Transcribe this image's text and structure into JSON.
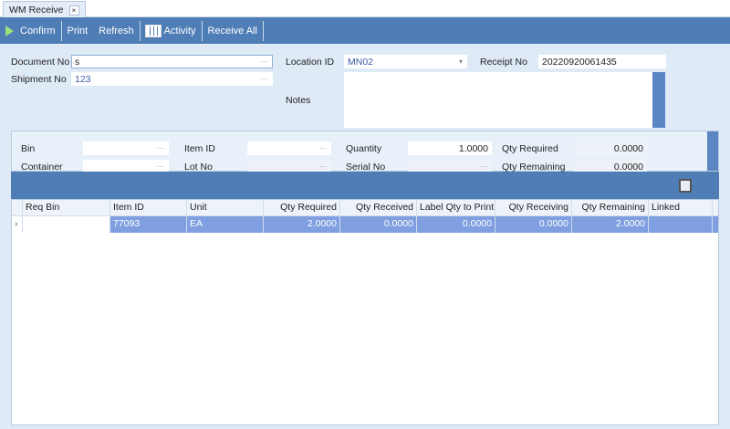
{
  "tab": {
    "title": "WM Receive",
    "close": "×"
  },
  "toolbar": {
    "confirm": "Confirm",
    "print": "Print",
    "refresh": "Refresh",
    "activity": "Activity",
    "receive_all": "Receive All"
  },
  "form": {
    "document_no": {
      "label": "Document No",
      "value": "s"
    },
    "shipment_no": {
      "label": "Shipment No",
      "value": "123"
    },
    "location_id": {
      "label": "Location ID",
      "value": "MN02"
    },
    "receipt_no": {
      "label": "Receipt No",
      "value": "20220920061435"
    },
    "notes": {
      "label": "Notes",
      "value": ""
    }
  },
  "entry": {
    "bin": {
      "label": "Bin",
      "value": ""
    },
    "container": {
      "label": "Container",
      "value": ""
    },
    "item_id": {
      "label": "Item ID",
      "value": ""
    },
    "lot_no": {
      "label": "Lot No",
      "value": ""
    },
    "quantity": {
      "label": "Quantity",
      "value": "1.0000"
    },
    "serial_no": {
      "label": "Serial No",
      "value": ""
    },
    "qty_required": {
      "label": "Qty Required",
      "value": "0.0000"
    },
    "qty_remaining": {
      "label": "Qty Remaining",
      "value": "0.0000"
    }
  },
  "grid": {
    "columns": [
      "Req Bin",
      "Item ID",
      "Unit",
      "Qty Required",
      "Qty Received",
      "Label Qty to Print",
      "Qty Receiving",
      "Qty Remaining",
      "Linked"
    ],
    "rows": [
      [
        "",
        "77093",
        "EA",
        "2.0000",
        "0.0000",
        "0.0000",
        "0.0000",
        "2.0000",
        ""
      ]
    ]
  },
  "colors": {
    "toolbar": "#4f7db6",
    "selected_row": "#7f9fe0",
    "background": "#dfeaf7"
  }
}
